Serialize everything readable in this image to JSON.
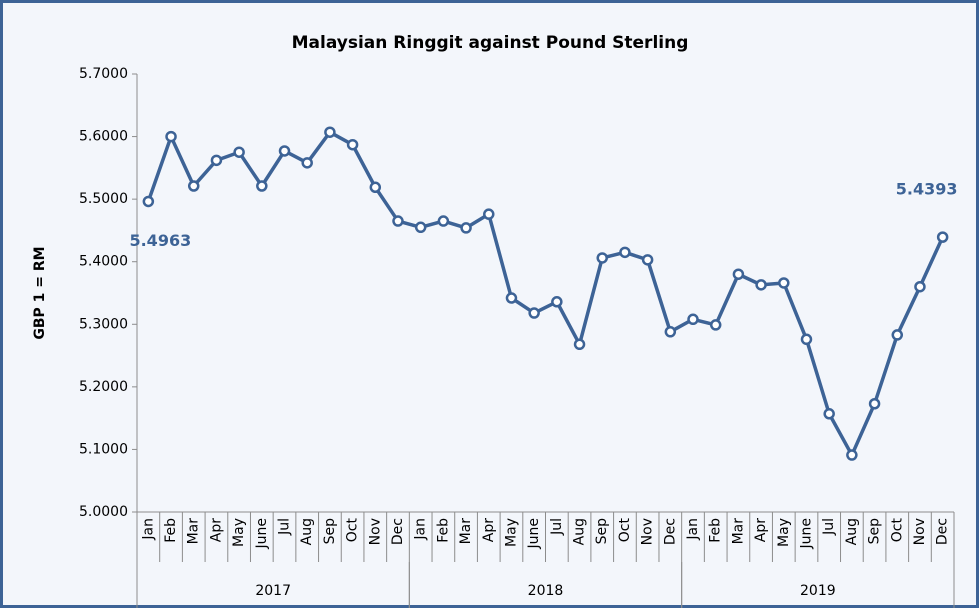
{
  "chart_data": {
    "type": "line",
    "title": "Malaysian Ringgit against Pound Sterling",
    "y_label": "GBP 1 = RM",
    "categories": [
      "Jan",
      "Feb",
      "Mar",
      "Apr",
      "May",
      "June",
      "Jul",
      "Aug",
      "Sep",
      "Oct",
      "Nov",
      "Dec",
      "Jan",
      "Feb",
      "Mar",
      "Apr",
      "May",
      "June",
      "Jul",
      "Aug",
      "Sep",
      "Oct",
      "Nov",
      "Dec",
      "Jan",
      "Feb",
      "Mar",
      "Apr",
      "May",
      "June",
      "Jul",
      "Aug",
      "Sep",
      "Oct",
      "Nov",
      "Dec"
    ],
    "category_groups": [
      "2017",
      "2018",
      "2019"
    ],
    "series": [
      {
        "name": "GBP 1 = RM",
        "color": "#3d6396",
        "values": [
          5.4963,
          5.6,
          5.521,
          5.562,
          5.575,
          5.521,
          5.577,
          5.558,
          5.607,
          5.587,
          5.519,
          5.465,
          5.455,
          5.465,
          5.454,
          5.476,
          5.342,
          5.318,
          5.336,
          5.268,
          5.406,
          5.415,
          5.403,
          5.288,
          5.308,
          5.299,
          5.38,
          5.363,
          5.366,
          5.276,
          5.157,
          5.091,
          5.173,
          5.283,
          5.36,
          5.4393
        ],
        "value_labels": [
          "5.4963",
          null,
          null,
          null,
          null,
          null,
          null,
          null,
          null,
          null,
          null,
          null,
          null,
          null,
          null,
          null,
          null,
          null,
          null,
          null,
          null,
          null,
          null,
          null,
          null,
          null,
          null,
          null,
          null,
          null,
          null,
          null,
          null,
          null,
          null,
          "5.4393"
        ]
      }
    ],
    "ylim": [
      5.0,
      5.7
    ],
    "yticks": [
      {
        "value": 5.0,
        "label": "5.0000"
      },
      {
        "value": 5.1,
        "label": "5.1000"
      },
      {
        "value": 5.2,
        "label": "5.2000"
      },
      {
        "value": 5.3,
        "label": "5.3000"
      },
      {
        "value": 5.4,
        "label": "5.4000"
      },
      {
        "value": 5.5,
        "label": "5.5000"
      },
      {
        "value": 5.6,
        "label": "5.6000"
      },
      {
        "value": 5.7,
        "label": "5.7000"
      }
    ],
    "grid": false
  }
}
